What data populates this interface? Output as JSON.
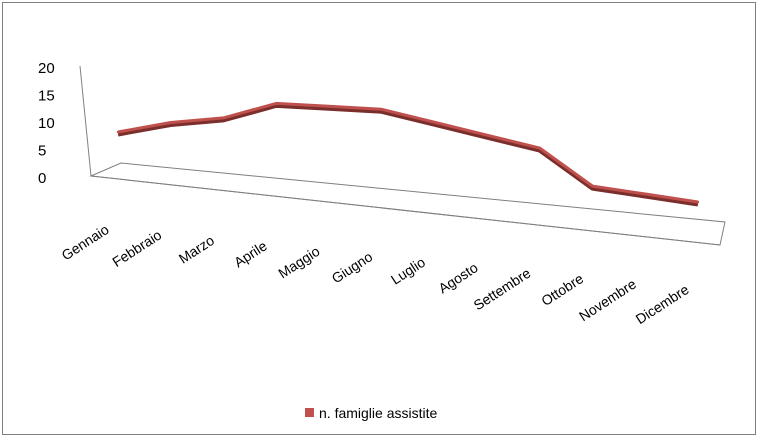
{
  "chart_data": {
    "type": "line",
    "title": "",
    "xlabel": "",
    "ylabel": "",
    "ylim": [
      0,
      20
    ],
    "yticks": [
      0,
      5,
      10,
      15,
      20
    ],
    "categories": [
      "Gennaio",
      "Febbraio",
      "Marzo",
      "Aprile",
      "Maggio",
      "Giugno",
      "Luglio",
      "Agosto",
      "Settembre",
      "Ottobre",
      "Novembre",
      "Dicembre"
    ],
    "series": [
      {
        "name": "n. famiglie assistite",
        "values": [
          9,
          12,
          14,
          18,
          18.5,
          19,
          17.5,
          16,
          14.5,
          8,
          7.5,
          7
        ],
        "color": "#c0504d"
      }
    ],
    "legend": "bottom",
    "grid": false,
    "style": "3d-line"
  }
}
